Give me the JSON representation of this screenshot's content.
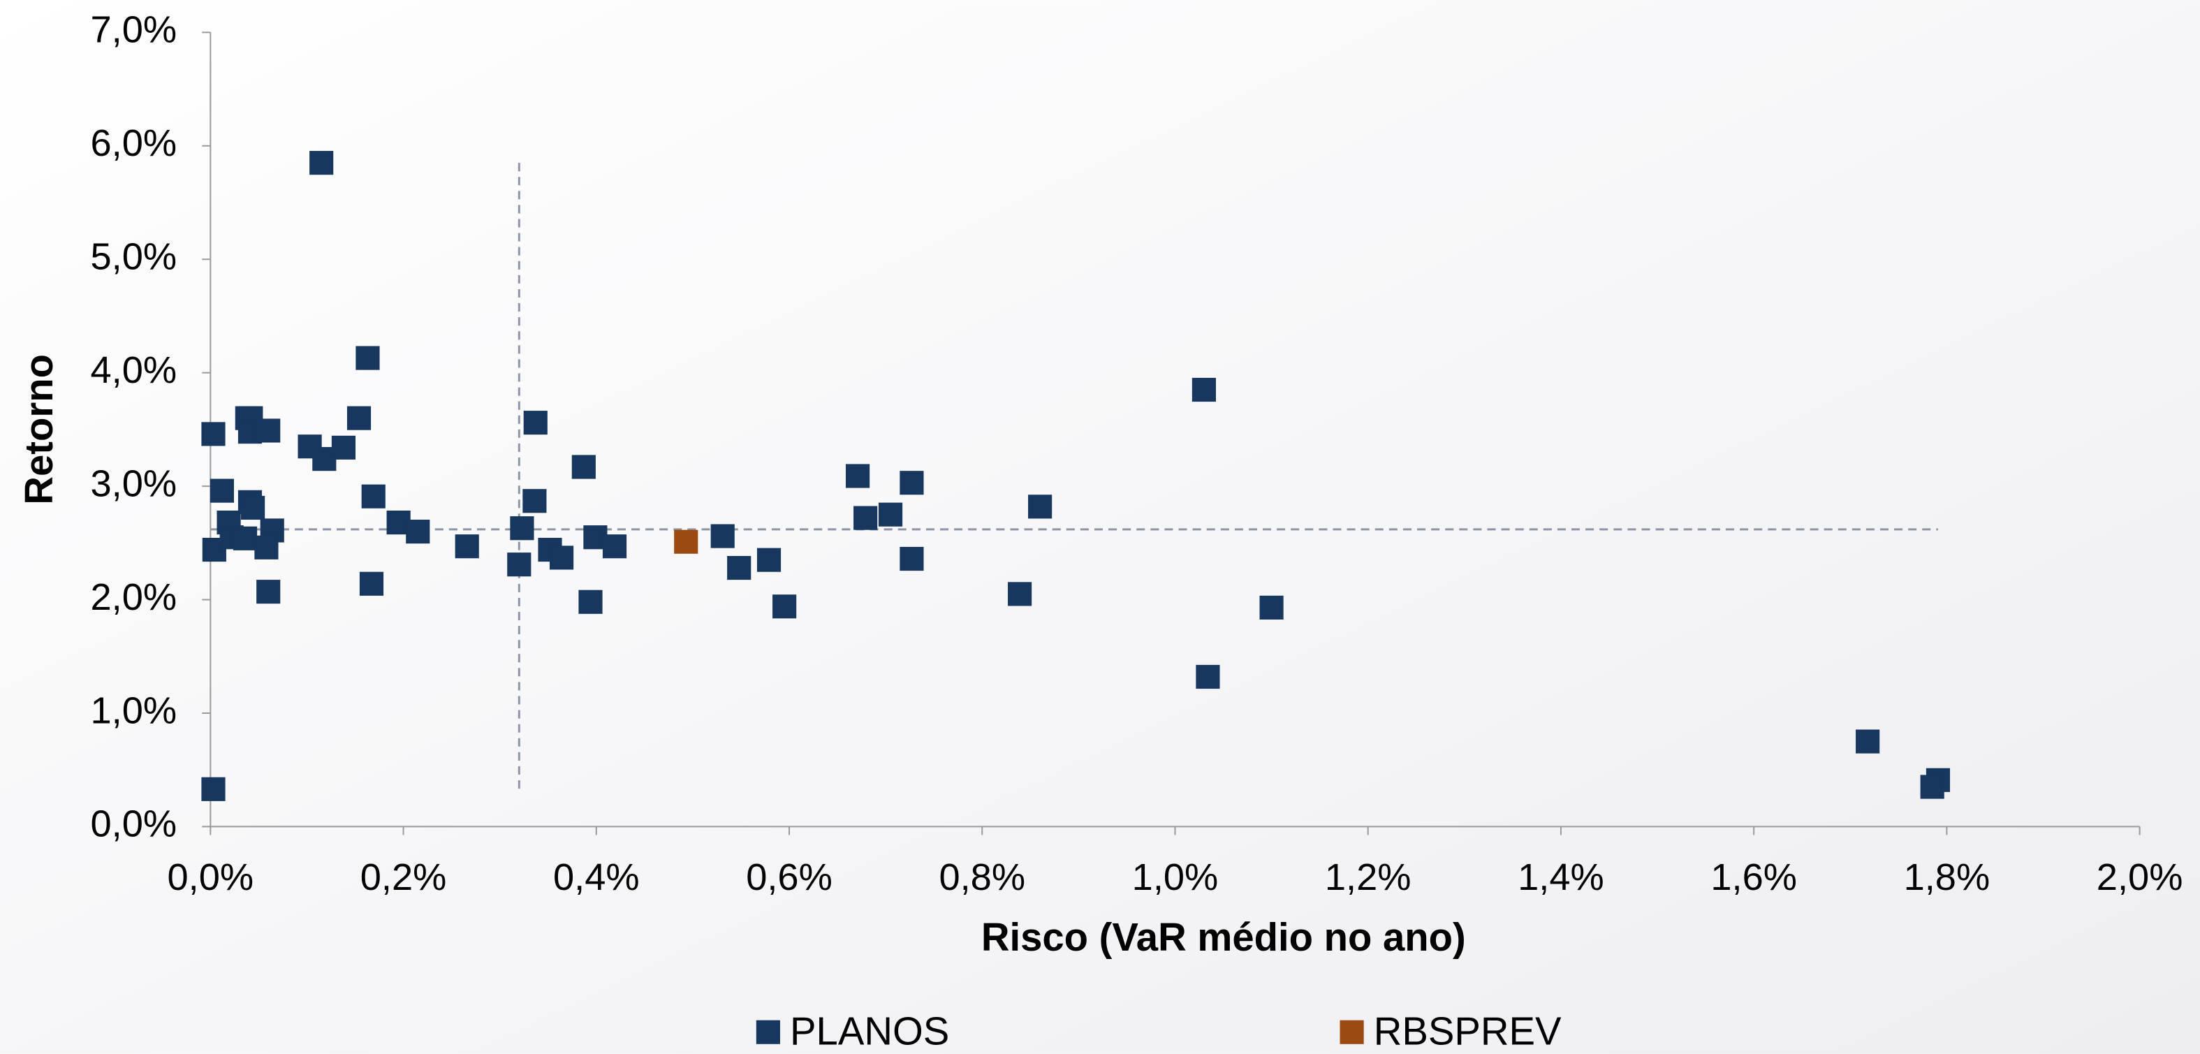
{
  "chart_data": {
    "type": "scatter",
    "x_label": "Risco (VaR médio no ano)",
    "y_label": "Retorno",
    "xlim": [
      0,
      2.0
    ],
    "ylim": [
      0,
      7.0
    ],
    "xticks": [
      {
        "value": 0,
        "label": "0,0%"
      },
      {
        "value": 0.2,
        "label": "0,2%"
      },
      {
        "value": 0.4,
        "label": "0,4%"
      },
      {
        "value": 0.6,
        "label": "0,6%"
      },
      {
        "value": 0.8,
        "label": "0,8%"
      },
      {
        "value": 1.0,
        "label": "1,0%"
      },
      {
        "value": 1.2,
        "label": "1,2%"
      },
      {
        "value": 1.4,
        "label": "1,4%"
      },
      {
        "value": 1.6,
        "label": "1,6%"
      },
      {
        "value": 1.8,
        "label": "1,8%"
      },
      {
        "value": 2.0,
        "label": "2,0%"
      }
    ],
    "yticks": [
      {
        "value": 0,
        "label": "0,0%"
      },
      {
        "value": 1.0,
        "label": "1,0%"
      },
      {
        "value": 2.0,
        "label": "2,0%"
      },
      {
        "value": 3.0,
        "label": "3,0%"
      },
      {
        "value": 4.0,
        "label": "4,0%"
      },
      {
        "value": 5.0,
        "label": "5,0%"
      },
      {
        "value": 6.0,
        "label": "6,0%"
      },
      {
        "value": 7.0,
        "label": "7,0%"
      }
    ],
    "reference_x": 0.32,
    "reference_y": 2.62,
    "series": [
      {
        "name": "PLANOS",
        "color": "#17375e",
        "x": [
          0.003,
          0.003,
          0.004,
          0.012,
          0.019,
          0.022,
          0.038,
          0.042,
          0.041,
          0.041,
          0.044,
          0.036,
          0.06,
          0.064,
          0.058,
          0.06,
          0.115,
          0.103,
          0.118,
          0.138,
          0.154,
          0.163,
          0.169,
          0.167,
          0.195,
          0.215,
          0.266,
          0.323,
          0.32,
          0.337,
          0.336,
          0.352,
          0.364,
          0.387,
          0.399,
          0.419,
          0.394,
          0.531,
          0.548,
          0.579,
          0.595,
          0.671,
          0.679,
          0.705,
          0.727,
          0.727,
          0.86,
          0.839,
          1.03,
          1.1,
          1.034,
          1.718,
          1.791,
          1.785
        ],
        "values": [
          0.33,
          3.46,
          2.44,
          2.96,
          2.68,
          2.55,
          3.6,
          3.6,
          3.48,
          2.86,
          2.81,
          2.54,
          3.49,
          2.61,
          2.46,
          2.07,
          5.85,
          3.35,
          3.24,
          3.34,
          3.6,
          4.13,
          2.91,
          2.14,
          2.68,
          2.6,
          2.47,
          2.63,
          2.31,
          3.56,
          2.87,
          2.44,
          2.37,
          3.17,
          2.55,
          2.47,
          1.98,
          2.56,
          2.28,
          2.35,
          1.94,
          3.09,
          2.72,
          2.75,
          3.03,
          2.36,
          2.82,
          2.05,
          3.85,
          1.93,
          1.32,
          0.75,
          0.41,
          0.35
        ]
      },
      {
        "name": "RBSPREV",
        "color": "#9c4a12",
        "x": [
          0.493
        ],
        "values": [
          2.51
        ]
      }
    ]
  }
}
